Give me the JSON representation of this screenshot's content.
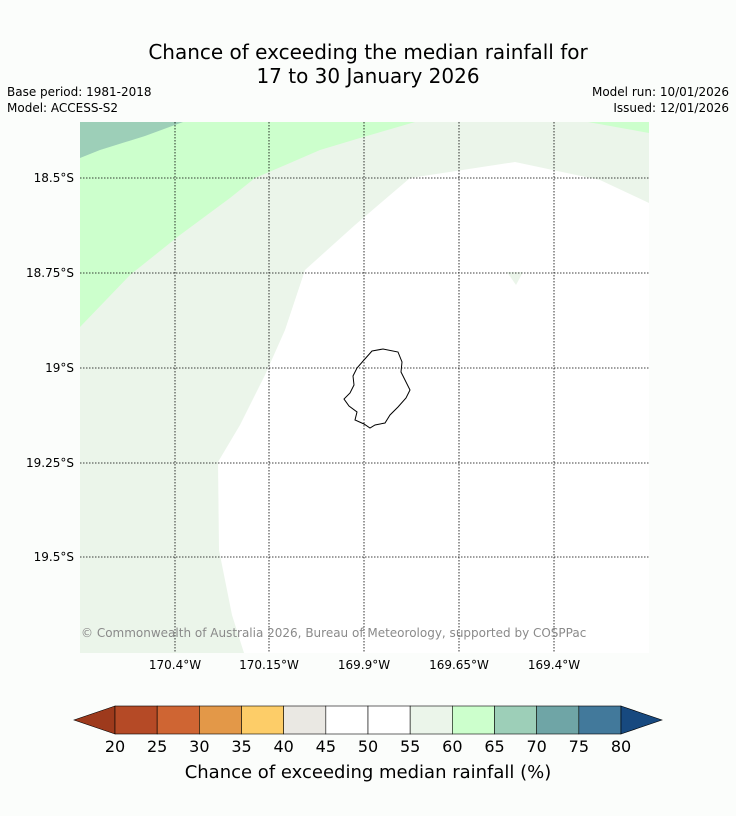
{
  "title_line1": "Chance of exceeding the median rainfall for",
  "title_line2": "17 to 30 January 2026",
  "base_period": "Base period: 1981-2018",
  "model": "Model: ACCESS-S2",
  "model_run": "Model run: 10/01/2026",
  "issued": "Issued: 12/01/2026",
  "lat_labels": [
    "18.5°S",
    "18.75°S",
    "19°S",
    "19.25°S",
    "19.5°S"
  ],
  "lon_labels": [
    "170.4°W",
    "170.15°W",
    "169.9°W",
    "169.65°W",
    "169.4°W"
  ],
  "copyright": "© Commonwealth of Australia 2026, Bureau of Meteorology, supported by COSPPac",
  "colorbar": {
    "label": "Chance of exceeding median rainfall (%)",
    "ticks": [
      "20",
      "25",
      "30",
      "35",
      "40",
      "45",
      "50",
      "55",
      "60",
      "65",
      "70",
      "75",
      "80"
    ],
    "colors": [
      "#9e3a1c",
      "#b54a26",
      "#cf6533",
      "#e39848",
      "#fdcd68",
      "#eae8e3",
      "#ffffff",
      "#ffffff",
      "#ebf5ea",
      "#ccffcc",
      "#9dcfb8",
      "#6fa5a6",
      "#42799b",
      "#17497f"
    ]
  },
  "map_colors": {
    "zone_70_75": "#9dcfb8",
    "zone_65_70": "#ccffcc",
    "zone_60_65": "#ebf5ea",
    "zone_50_60": "#ffffff"
  }
}
